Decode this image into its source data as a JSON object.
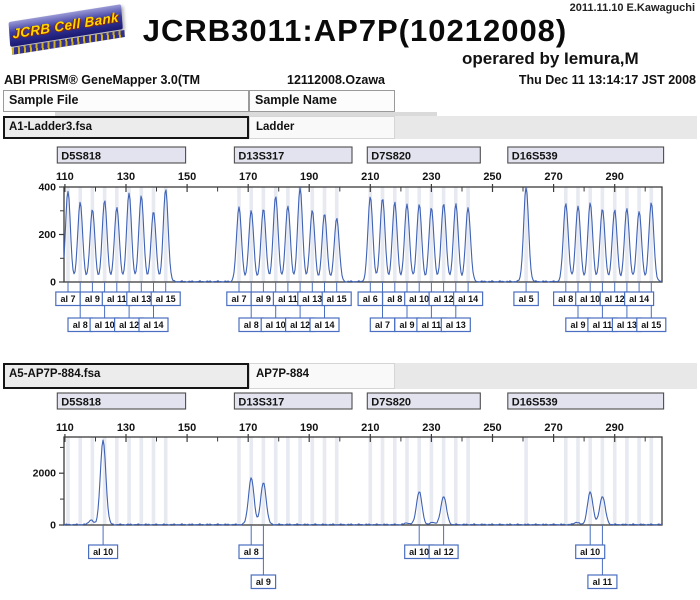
{
  "page": {
    "top_right_note": "2011.11.10 E.Kawaguchi",
    "logo_text": "JCRB Cell Bank",
    "title": "JCRB3011:AP7P(10212008)",
    "operator_line": "operared by Iemura,M",
    "app_name": "ABI PRISM® GeneMapper 3.0(TM",
    "run_id": "12112008.Ozawa",
    "timestamp": "Thu Dec 11 13:14:17 JST 2008",
    "col_headers": {
      "file": "Sample File",
      "name": "Sample Name"
    }
  },
  "colors": {
    "trace": "#3f62b5",
    "allele_border": "#4a6fc0",
    "allele_text": "#1c2550",
    "marker_fill": "#e2e3ee",
    "marker_border": "#4d4d4d",
    "bin_stripe": "#e8eaf2",
    "frame": "#3b3b3b",
    "logo_blue": "#2a2a90",
    "logo_yellow": "#ffd800"
  },
  "chart_data": [
    {
      "type": "line",
      "subtype": "electropherogram",
      "sample_file": "A1-Ladder3.fsa",
      "sample_name": "Ladder",
      "x_axis": {
        "min": 109.7,
        "max": 305.5,
        "major_ticks": [
          110,
          130,
          150,
          170,
          190,
          210,
          230,
          250,
          270,
          290
        ],
        "minor_step": 10,
        "unit": "bp"
      },
      "y_axis": {
        "max": 400,
        "labeled_ticks": [
          0,
          200,
          400
        ],
        "minor_ticks": [
          100,
          300
        ]
      },
      "markers": [
        {
          "name": "D5S818",
          "bp_start": 107.5,
          "bp_end": 149.5
        },
        {
          "name": "D13S317",
          "bp_start": 165.5,
          "bp_end": 204
        },
        {
          "name": "D7S820",
          "bp_start": 209,
          "bp_end": 246
        },
        {
          "name": "D16S539",
          "bp_start": 255,
          "bp_end": 306
        }
      ],
      "peaks": [
        {
          "marker": "D5S818",
          "allele": "al 7",
          "bp": 111,
          "rfu": 380,
          "row": 0
        },
        {
          "marker": "D5S818",
          "allele": "al 8",
          "bp": 115,
          "rfu": 335,
          "row": 1
        },
        {
          "marker": "D5S818",
          "allele": "al 9",
          "bp": 119,
          "rfu": 303,
          "row": 0
        },
        {
          "marker": "D5S818",
          "allele": "al 10",
          "bp": 123,
          "rfu": 342,
          "row": 1
        },
        {
          "marker": "D5S818",
          "allele": "al 11",
          "bp": 127,
          "rfu": 313,
          "row": 0
        },
        {
          "marker": "D5S818",
          "allele": "al 12",
          "bp": 131,
          "rfu": 372,
          "row": 1
        },
        {
          "marker": "D5S818",
          "allele": "al 13",
          "bp": 135,
          "rfu": 362,
          "row": 0
        },
        {
          "marker": "D5S818",
          "allele": "al 14",
          "bp": 139,
          "rfu": 295,
          "row": 1
        },
        {
          "marker": "D5S818",
          "allele": "al 15",
          "bp": 143,
          "rfu": 388,
          "row": 0
        },
        {
          "marker": "D13S317",
          "allele": "al 7",
          "bp": 167,
          "rfu": 315,
          "row": 0
        },
        {
          "marker": "D13S317",
          "allele": "al 8",
          "bp": 171,
          "rfu": 298,
          "row": 1
        },
        {
          "marker": "D13S317",
          "allele": "al 9",
          "bp": 175,
          "rfu": 306,
          "row": 0
        },
        {
          "marker": "D13S317",
          "allele": "al 10",
          "bp": 179,
          "rfu": 360,
          "row": 1
        },
        {
          "marker": "D13S317",
          "allele": "al 11",
          "bp": 183,
          "rfu": 318,
          "row": 0
        },
        {
          "marker": "D13S317",
          "allele": "al 12",
          "bp": 187,
          "rfu": 395,
          "row": 1
        },
        {
          "marker": "D13S317",
          "allele": "al 13",
          "bp": 191,
          "rfu": 300,
          "row": 0
        },
        {
          "marker": "D13S317",
          "allele": "al 14",
          "bp": 195,
          "rfu": 285,
          "row": 1
        },
        {
          "marker": "D13S317",
          "allele": "al 15",
          "bp": 199,
          "rfu": 268,
          "row": 0
        },
        {
          "marker": "D7S820",
          "allele": "al 6",
          "bp": 210,
          "rfu": 358,
          "row": 0
        },
        {
          "marker": "D7S820",
          "allele": "al 7",
          "bp": 214,
          "rfu": 352,
          "row": 1
        },
        {
          "marker": "D7S820",
          "allele": "al 8",
          "bp": 218,
          "rfu": 332,
          "row": 0
        },
        {
          "marker": "D7S820",
          "allele": "al 9",
          "bp": 222,
          "rfu": 328,
          "row": 1
        },
        {
          "marker": "D7S820",
          "allele": "al 10",
          "bp": 226,
          "rfu": 325,
          "row": 0
        },
        {
          "marker": "D7S820",
          "allele": "al 11",
          "bp": 230,
          "rfu": 310,
          "row": 1
        },
        {
          "marker": "D7S820",
          "allele": "al 12",
          "bp": 234,
          "rfu": 330,
          "row": 0
        },
        {
          "marker": "D7S820",
          "allele": "al 13",
          "bp": 238,
          "rfu": 325,
          "row": 1
        },
        {
          "marker": "D7S820",
          "allele": "al 14",
          "bp": 242,
          "rfu": 312,
          "row": 0
        },
        {
          "marker": "D16S539",
          "allele": "al 5",
          "bp": 261,
          "rfu": 398,
          "row": 0
        },
        {
          "marker": "D16S539",
          "allele": "al 8",
          "bp": 274,
          "rfu": 330,
          "row": 0
        },
        {
          "marker": "D16S539",
          "allele": "al 9",
          "bp": 278,
          "rfu": 318,
          "row": 1
        },
        {
          "marker": "D16S539",
          "allele": "al 10",
          "bp": 282,
          "rfu": 330,
          "row": 0
        },
        {
          "marker": "D16S539",
          "allele": "al 11",
          "bp": 286,
          "rfu": 308,
          "row": 1
        },
        {
          "marker": "D16S539",
          "allele": "al 12",
          "bp": 290,
          "rfu": 300,
          "row": 0
        },
        {
          "marker": "D16S539",
          "allele": "al 13",
          "bp": 294,
          "rfu": 308,
          "row": 1
        },
        {
          "marker": "D16S539",
          "allele": "al 14",
          "bp": 298,
          "rfu": 297,
          "row": 0
        },
        {
          "marker": "D16S539",
          "allele": "al 15",
          "bp": 302,
          "rfu": 330,
          "row": 1
        }
      ],
      "artifacts": []
    },
    {
      "type": "line",
      "subtype": "electropherogram",
      "sample_file": "A5-AP7P-884.fsa",
      "sample_name": "AP7P-884",
      "x_axis": {
        "min": 109.7,
        "max": 305.5,
        "major_ticks": [
          110,
          130,
          150,
          170,
          190,
          210,
          230,
          250,
          270,
          290
        ],
        "minor_step": 10,
        "unit": "bp"
      },
      "y_axis": {
        "max": 3400,
        "labeled_ticks": [
          0,
          2000
        ],
        "minor_ticks": [
          1000,
          3000
        ]
      },
      "markers": [
        {
          "name": "D5S818",
          "bp_start": 107.5,
          "bp_end": 149.5
        },
        {
          "name": "D13S317",
          "bp_start": 165.5,
          "bp_end": 204
        },
        {
          "name": "D7S820",
          "bp_start": 209,
          "bp_end": 246
        },
        {
          "name": "D16S539",
          "bp_start": 255,
          "bp_end": 306
        }
      ],
      "peaks": [
        {
          "marker": "D5S818",
          "allele": "al 10",
          "bp": 122.5,
          "rfu": 3250,
          "row": 0
        },
        {
          "marker": "D13S317",
          "allele": "al 8",
          "bp": 171,
          "rfu": 1800,
          "row": 0
        },
        {
          "marker": "D13S317",
          "allele": "al 9",
          "bp": 175,
          "rfu": 1620,
          "row": 1
        },
        {
          "marker": "D7S820",
          "allele": "al 10",
          "bp": 226,
          "rfu": 1270,
          "row": 0
        },
        {
          "marker": "D7S820",
          "allele": "al 12",
          "bp": 234,
          "rfu": 1100,
          "row": 0
        },
        {
          "marker": "D16S539",
          "allele": "al 10",
          "bp": 282,
          "rfu": 1250,
          "row": 0
        },
        {
          "marker": "D16S539",
          "allele": "al 11",
          "bp": 286,
          "rfu": 1100,
          "row": 1
        }
      ],
      "artifacts": [
        {
          "bp": 118.5,
          "rfu": 180
        },
        {
          "bp": 222,
          "rfu": 70
        },
        {
          "bp": 230.5,
          "rfu": 95
        },
        {
          "bp": 277.5,
          "rfu": 95
        }
      ]
    }
  ]
}
